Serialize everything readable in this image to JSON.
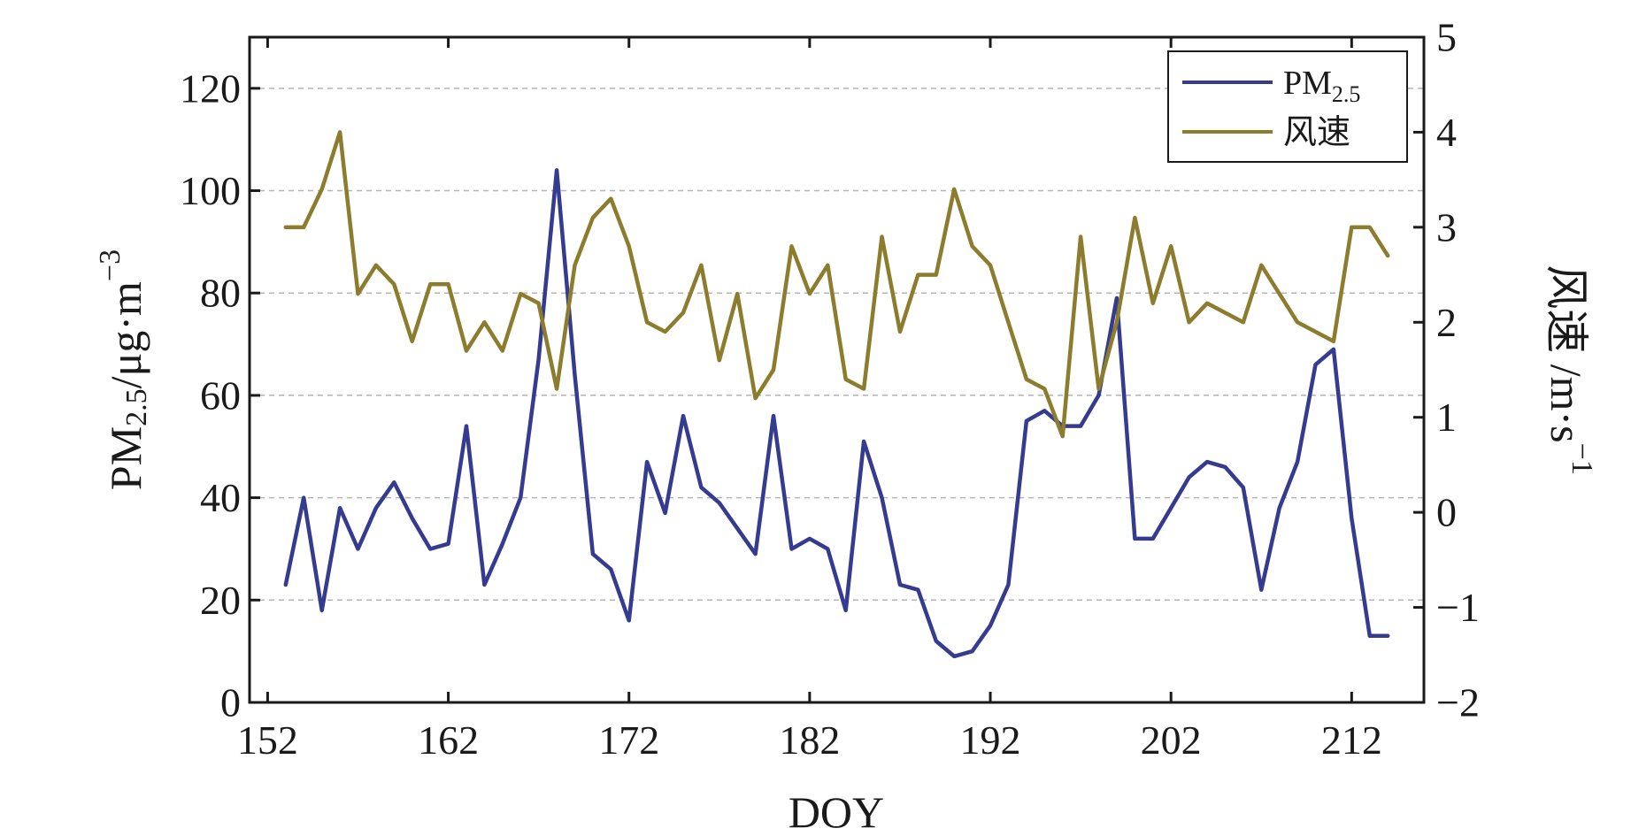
{
  "chart_data": {
    "type": "line",
    "x_label": "DOY",
    "x_range": [
      151,
      216
    ],
    "x_ticks": [
      152,
      162,
      172,
      182,
      192,
      202,
      212
    ],
    "y_left": {
      "label_main": "PM",
      "label_sub": "2.5",
      "label_unit": "/μg·m",
      "label_exp": "−3",
      "range": [
        0,
        130
      ],
      "ticks": [
        0,
        20,
        40,
        60,
        80,
        100,
        120
      ],
      "tick_labels": [
        "0",
        "20",
        "40",
        "60",
        "80",
        "100",
        "120"
      ]
    },
    "y_right": {
      "label_main": "风速",
      "label_unit": " /m·s",
      "label_exp": "−1",
      "range": [
        -2,
        5
      ],
      "ticks": [
        -2,
        -1,
        0,
        1,
        2,
        3,
        4,
        5
      ],
      "tick_labels": [
        "−2",
        "−1",
        "0",
        "1",
        "2",
        "3",
        "4",
        "5"
      ]
    },
    "gridlines": "horizontal dashed, left axis",
    "legend_position": "top-right",
    "series": [
      {
        "name": "PM2.5",
        "legend_main": "PM",
        "legend_sub": "2.5",
        "axis": "left",
        "color": "#353b8f",
        "x": [
          153,
          154,
          155,
          156,
          157,
          158,
          159,
          160,
          161,
          162,
          163,
          164,
          165,
          166,
          167,
          168,
          169,
          170,
          171,
          172,
          173,
          174,
          175,
          176,
          177,
          178,
          179,
          180,
          181,
          182,
          183,
          184,
          185,
          186,
          187,
          188,
          189,
          190,
          191,
          192,
          193,
          194,
          195,
          196,
          197,
          198,
          199,
          200,
          201,
          202,
          203,
          204,
          205,
          206,
          207,
          208,
          209,
          210,
          211,
          212,
          213,
          214
        ],
        "values": [
          23,
          40,
          18,
          38,
          30,
          38,
          43,
          36,
          30,
          31,
          54,
          23,
          31,
          40,
          67,
          104,
          64,
          29,
          26,
          16,
          47,
          37,
          56,
          42,
          39,
          34,
          29,
          56,
          30,
          32,
          30,
          18,
          51,
          40,
          23,
          22,
          12,
          9,
          10,
          15,
          23,
          55,
          57,
          54,
          54,
          60,
          79,
          32,
          32,
          38,
          44,
          47,
          46,
          42,
          22,
          38,
          47,
          66,
          69,
          36,
          13,
          13
        ]
      },
      {
        "name": "风速",
        "legend_main": "风速",
        "axis": "right",
        "color": "#8c7d2e",
        "x": [
          153,
          154,
          155,
          156,
          157,
          158,
          159,
          160,
          161,
          162,
          163,
          164,
          165,
          166,
          167,
          168,
          169,
          170,
          171,
          172,
          173,
          174,
          175,
          176,
          177,
          178,
          179,
          180,
          181,
          182,
          183,
          184,
          185,
          186,
          187,
          188,
          189,
          190,
          191,
          192,
          193,
          194,
          195,
          196,
          197,
          198,
          199,
          200,
          201,
          202,
          203,
          204,
          205,
          206,
          207,
          208,
          209,
          210,
          211,
          212,
          213,
          214
        ],
        "values": [
          3.0,
          3.0,
          3.4,
          4.0,
          2.3,
          2.6,
          2.4,
          1.8,
          2.4,
          2.4,
          1.7,
          2.0,
          1.7,
          2.3,
          2.2,
          1.3,
          2.6,
          3.1,
          3.3,
          2.8,
          2.0,
          1.9,
          2.1,
          2.6,
          1.6,
          2.3,
          1.2,
          1.5,
          2.8,
          2.3,
          2.6,
          1.4,
          1.3,
          2.9,
          1.9,
          2.5,
          2.5,
          3.4,
          2.8,
          2.6,
          2.0,
          1.4,
          1.3,
          0.8,
          2.9,
          1.3,
          2.0,
          3.1,
          2.2,
          2.8,
          2.0,
          2.2,
          2.1,
          2.0,
          2.6,
          2.3,
          2.0,
          1.9,
          1.8,
          3.0,
          3.0,
          2.7
        ]
      }
    ]
  }
}
